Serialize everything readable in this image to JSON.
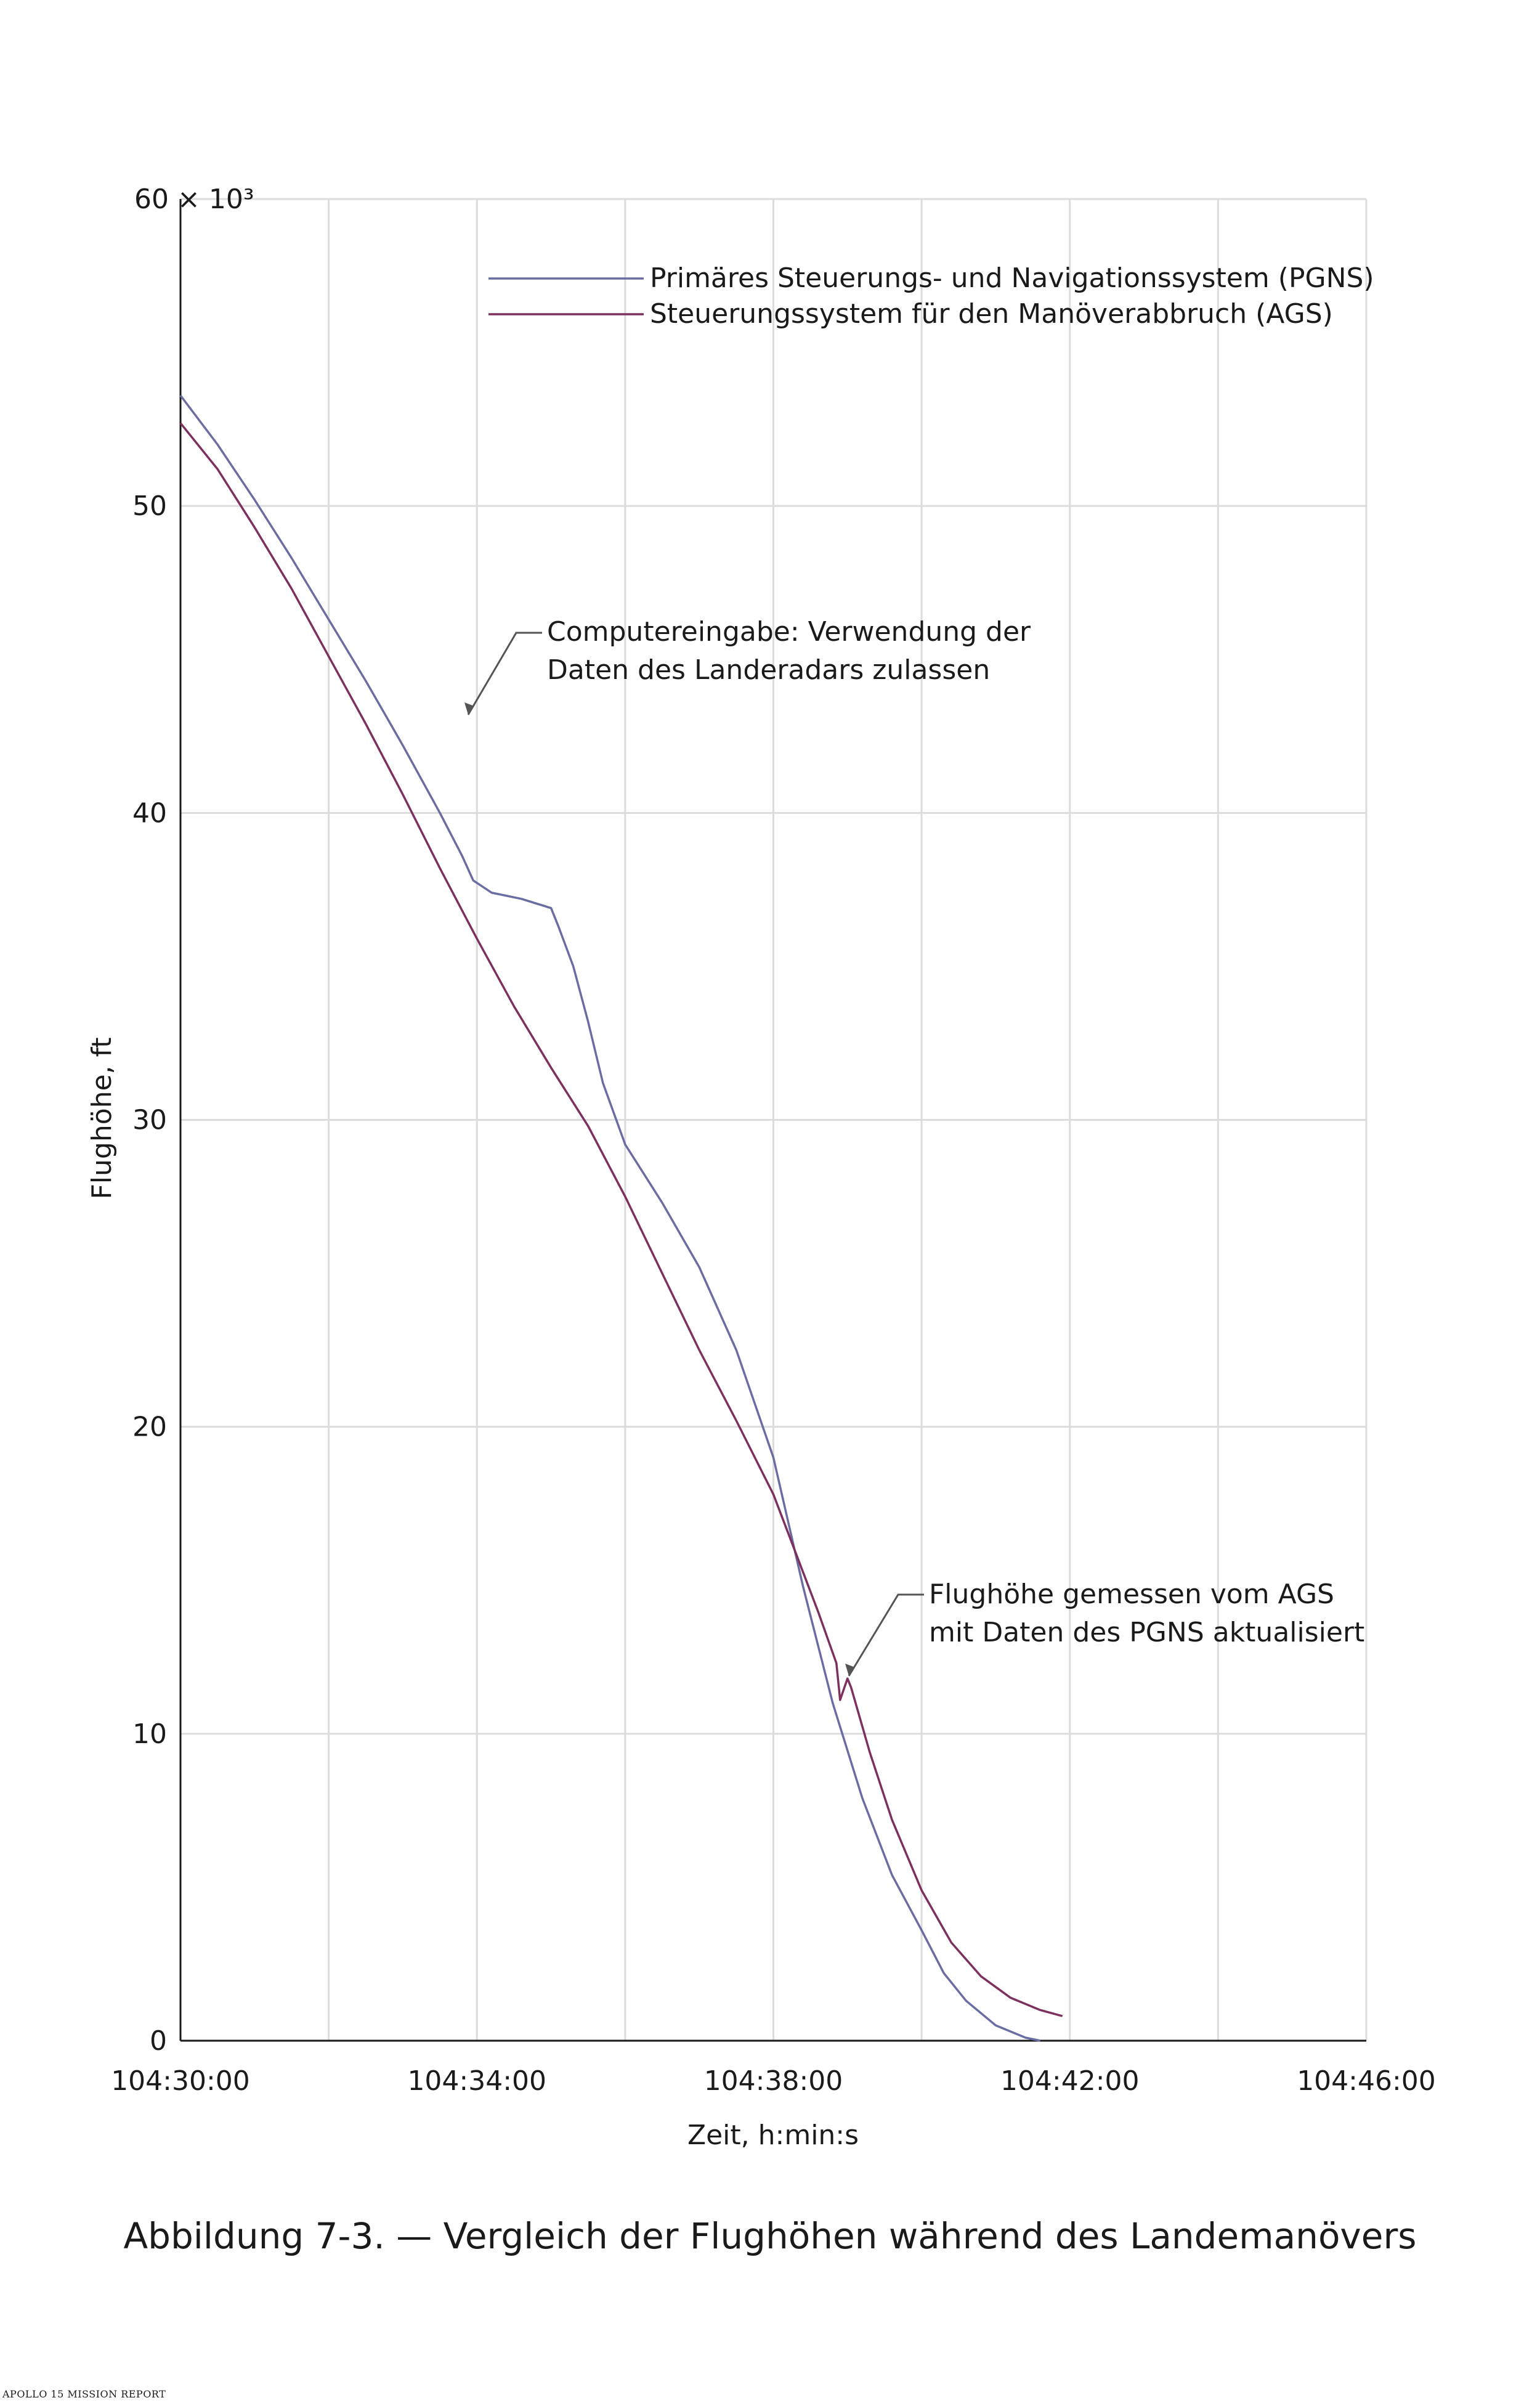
{
  "chart_data": {
    "type": "line",
    "title": "Abbildung 7-3. — Vergleich der Flughöhen während des Landemanövers",
    "xlabel": "Zeit, h:min:s",
    "ylabel": "Flughöhe, ft",
    "y_multiplier_label": "60 × 10³",
    "x_domain_minutes": [
      0,
      16
    ],
    "ylim": [
      0,
      60
    ],
    "x_ticks": [
      {
        "minute": 0,
        "label": "104:30:00"
      },
      {
        "minute": 4,
        "label": "104:34:00"
      },
      {
        "minute": 8,
        "label": "104:38:00"
      },
      {
        "minute": 12,
        "label": "104:42:00"
      },
      {
        "minute": 16,
        "label": "104:46:00"
      }
    ],
    "y_ticks": [
      {
        "value": 0,
        "label": "0"
      },
      {
        "value": 10,
        "label": "10"
      },
      {
        "value": 20,
        "label": "20"
      },
      {
        "value": 30,
        "label": "30"
      },
      {
        "value": 40,
        "label": "40"
      },
      {
        "value": 50,
        "label": "50"
      }
    ],
    "grid": true,
    "legend_position": "top",
    "series": [
      {
        "name": "Primäres Steuerungs- und Navigationssystem (PGNS)",
        "color": "#6a6da3",
        "x": [
          0,
          0.5,
          1,
          1.5,
          2,
          2.5,
          3,
          3.5,
          3.8,
          3.95,
          4.2,
          4.6,
          5.0,
          5.1,
          5.3,
          5.5,
          5.7,
          6.0,
          6.5,
          7.0,
          7.5,
          8.0,
          8.4,
          8.8,
          9.2,
          9.6,
          10.0,
          10.3,
          10.6,
          11.0,
          11.4,
          11.6
        ],
        "values": [
          53.6,
          52.0,
          50.2,
          48.3,
          46.3,
          44.3,
          42.2,
          40.0,
          38.6,
          37.8,
          37.4,
          37.2,
          36.9,
          36.3,
          35.0,
          33.2,
          31.2,
          29.2,
          27.3,
          25.2,
          22.5,
          19.0,
          14.8,
          11.0,
          7.9,
          5.4,
          3.6,
          2.2,
          1.3,
          0.5,
          0.1,
          0.0
        ]
      },
      {
        "name": "Steuerungssystem für den Manöverabbruch (AGS)",
        "color": "#7d2f5e",
        "x": [
          0,
          0.5,
          1,
          1.5,
          2,
          2.5,
          3,
          3.5,
          4,
          4.5,
          5,
          5.5,
          6,
          6.5,
          7,
          7.5,
          8,
          8.3,
          8.6,
          8.85,
          8.9,
          9.0,
          9.05,
          9.3,
          9.6,
          10.0,
          10.4,
          10.8,
          11.2,
          11.6,
          11.9
        ],
        "values": [
          52.7,
          51.2,
          49.3,
          47.3,
          45.1,
          42.9,
          40.6,
          38.2,
          35.9,
          33.7,
          31.7,
          29.8,
          27.5,
          25.0,
          22.5,
          20.2,
          17.8,
          15.9,
          14.0,
          12.3,
          11.1,
          11.8,
          11.5,
          9.4,
          7.2,
          4.9,
          3.2,
          2.1,
          1.4,
          1.0,
          0.8
        ]
      }
    ],
    "annotations": [
      {
        "lines": [
          "Computereingabe: Verwendung der",
          "Daten des Landeradars zulassen"
        ],
        "target_minute": 3.95,
        "target_value": 42.0
      },
      {
        "lines": [
          "Flughöhe gemessen vom AGS",
          "mit Daten des PGNS aktualisiert"
        ],
        "target_minute": 8.95,
        "target_value": 11.5
      }
    ]
  },
  "caption": "Abbildung 7-3. — Vergleich der Flughöhen während des Landemanövers",
  "footer": "APOLLO 15 MISSION REPORT"
}
